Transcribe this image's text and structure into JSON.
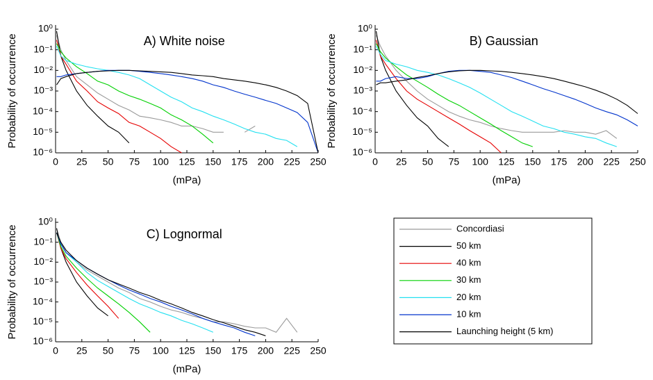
{
  "chart_data": [
    {
      "type": "line",
      "title": "A) White noise",
      "ylabel": "Probability of occurrence",
      "xlabel": "(mPa)",
      "log_y": true,
      "x": [
        1,
        5,
        10,
        20,
        30,
        40,
        50,
        60,
        70,
        80,
        90,
        100,
        110,
        120,
        130,
        140,
        150,
        160,
        170,
        180,
        190,
        200,
        210,
        220,
        230,
        240,
        250
      ],
      "xlim": [
        0,
        250
      ],
      "xticks": [
        0,
        25,
        50,
        75,
        100,
        125,
        150,
        175,
        200,
        225,
        250
      ],
      "ylim": [
        1e-06,
        1
      ],
      "yticks": [
        {
          "value": 1e-06,
          "label": "10⁻⁶"
        },
        {
          "value": 1e-05,
          "label": "10⁻⁵"
        },
        {
          "value": 0.0001,
          "label": "10⁻⁴"
        },
        {
          "value": 0.001,
          "label": "10⁻³"
        },
        {
          "value": 0.01,
          "label": "10⁻²"
        },
        {
          "value": 0.1,
          "label": "10⁻¹"
        },
        {
          "value": 1,
          "label": "10⁰"
        }
      ],
      "series": [
        {
          "name": "Concordiasi",
          "color": "#9a9a9a",
          "values": [
            0.5,
            0.1,
            0.03,
            0.005,
            0.002,
            0.0008,
            0.0004,
            0.0002,
            0.00012,
            6e-05,
            5e-05,
            4e-05,
            3e-05,
            2e-05,
            2e-05,
            1.5e-05,
            1e-05,
            1e-05,
            null,
            1e-05,
            2e-05,
            null,
            null,
            null,
            null,
            null,
            null
          ]
        },
        {
          "name": "50 km",
          "color": "#000000",
          "values": [
            0.8,
            0.05,
            0.01,
            0.001,
            0.0002,
            6e-05,
            2e-05,
            1e-05,
            3e-06,
            null,
            null,
            null,
            null,
            null,
            null,
            null,
            null,
            null,
            null,
            null,
            null,
            null,
            null,
            null,
            null,
            null,
            null
          ]
        },
        {
          "name": "40 km",
          "color": "#e60000",
          "values": [
            0.3,
            0.05,
            0.02,
            0.003,
            0.001,
            0.0003,
            0.00015,
            8e-05,
            3e-05,
            2e-05,
            1e-05,
            5e-06,
            2e-06,
            1e-06,
            null,
            null,
            null,
            null,
            null,
            null,
            null,
            null,
            null,
            null,
            null,
            null,
            null
          ]
        },
        {
          "name": "30 km",
          "color": "#00d000",
          "values": [
            0.2,
            0.08,
            0.04,
            0.015,
            0.007,
            0.003,
            0.002,
            0.001,
            0.0006,
            0.0004,
            0.00025,
            0.00015,
            7e-05,
            4e-05,
            2e-05,
            8e-06,
            3e-06,
            null,
            null,
            null,
            null,
            null,
            null,
            null,
            null,
            null,
            null
          ]
        },
        {
          "name": "20 km",
          "color": "#22e0f0",
          "values": [
            0.15,
            0.05,
            0.03,
            0.02,
            0.015,
            0.012,
            0.01,
            0.008,
            0.006,
            0.004,
            0.002,
            0.001,
            0.0005,
            0.0003,
            0.00015,
            0.0001,
            6e-05,
            4e-05,
            2.5e-05,
            1.5e-05,
            1e-05,
            8e-06,
            5e-06,
            4e-06,
            2e-06,
            null,
            null
          ]
        },
        {
          "name": "10 km",
          "color": "#0033cc",
          "values": [
            0.005,
            0.005,
            0.006,
            0.007,
            0.008,
            0.009,
            0.01,
            0.01,
            0.01,
            0.009,
            0.008,
            0.007,
            0.006,
            0.005,
            0.004,
            0.003,
            0.002,
            0.0015,
            0.001,
            0.0007,
            0.0005,
            0.00035,
            0.00025,
            0.00015,
            9e-05,
            3e-05,
            1e-06
          ]
        },
        {
          "name": "Launching height (5 km)",
          "color": "#000000",
          "values": [
            0.002,
            0.004,
            0.005,
            0.007,
            0.008,
            0.009,
            0.0095,
            0.01,
            0.01,
            0.0095,
            0.009,
            0.0085,
            0.008,
            0.007,
            0.006,
            0.0055,
            0.005,
            0.004,
            0.0035,
            0.003,
            0.0025,
            0.002,
            0.0015,
            0.001,
            0.0006,
            0.00025,
            1e-06
          ]
        }
      ]
    },
    {
      "type": "line",
      "title": "B) Gaussian",
      "ylabel": "Probability of occurrence",
      "xlabel": "(mPa)",
      "log_y": true,
      "x": [
        1,
        5,
        10,
        20,
        30,
        40,
        50,
        60,
        70,
        80,
        90,
        100,
        110,
        120,
        130,
        140,
        150,
        160,
        170,
        180,
        190,
        200,
        210,
        220,
        230,
        240,
        250
      ],
      "xlim": [
        0,
        250
      ],
      "xticks": [
        0,
        25,
        50,
        75,
        100,
        125,
        150,
        175,
        200,
        225,
        250
      ],
      "ylim": [
        1e-06,
        1
      ],
      "yticks": [
        {
          "value": 1e-06,
          "label": "10⁻⁶"
        },
        {
          "value": 1e-05,
          "label": "10⁻⁵"
        },
        {
          "value": 0.0001,
          "label": "10⁻⁴"
        },
        {
          "value": 0.001,
          "label": "10⁻³"
        },
        {
          "value": 0.01,
          "label": "10⁻²"
        },
        {
          "value": 0.1,
          "label": "10⁻¹"
        },
        {
          "value": 1,
          "label": "10⁰"
        }
      ],
      "series": [
        {
          "name": "Concordiasi",
          "color": "#9a9a9a",
          "values": [
            0.5,
            0.15,
            0.05,
            0.01,
            0.003,
            0.001,
            0.0004,
            0.0002,
            0.0001,
            6e-05,
            4e-05,
            3e-05,
            2e-05,
            1.5e-05,
            1.2e-05,
            1e-05,
            1e-05,
            1e-05,
            1e-05,
            1.2e-05,
            1e-05,
            1e-05,
            8e-06,
            1.2e-05,
            5e-06,
            null,
            null
          ]
        },
        {
          "name": "50 km",
          "color": "#000000",
          "values": [
            0.8,
            0.05,
            0.01,
            0.001,
            0.0002,
            5e-05,
            2e-05,
            5e-06,
            2e-06,
            null,
            null,
            null,
            null,
            null,
            null,
            null,
            null,
            null,
            null,
            null,
            null,
            null,
            null,
            null,
            null,
            null,
            null
          ]
        },
        {
          "name": "40 km",
          "color": "#e60000",
          "values": [
            0.3,
            0.05,
            0.02,
            0.004,
            0.001,
            0.0004,
            0.0002,
            0.0001,
            5e-05,
            2.5e-05,
            1.2e-05,
            6e-06,
            3e-06,
            1e-06,
            null,
            null,
            null,
            null,
            null,
            null,
            null,
            null,
            null,
            null,
            null,
            null,
            null
          ]
        },
        {
          "name": "30 km",
          "color": "#00d000",
          "values": [
            0.2,
            0.08,
            0.04,
            0.015,
            0.006,
            0.003,
            0.0015,
            0.0007,
            0.00035,
            0.0002,
            0.0001,
            5e-05,
            2.5e-05,
            1.2e-05,
            6e-06,
            3e-06,
            2e-06,
            null,
            null,
            null,
            null,
            null,
            null,
            null,
            null,
            null,
            null
          ]
        },
        {
          "name": "20 km",
          "color": "#22e0f0",
          "values": [
            0.15,
            0.06,
            0.03,
            0.02,
            0.015,
            0.01,
            0.008,
            0.006,
            0.004,
            0.0025,
            0.0015,
            0.0008,
            0.0004,
            0.0002,
            0.0001,
            6e-05,
            3.5e-05,
            2e-05,
            1.5e-05,
            1e-05,
            8e-06,
            6e-06,
            5e-06,
            3e-06,
            2e-06,
            null,
            null
          ]
        },
        {
          "name": "10 km",
          "color": "#0033cc",
          "values": [
            0.003,
            0.003,
            0.004,
            0.005,
            0.004,
            0.004,
            0.005,
            0.007,
            0.009,
            0.01,
            0.01,
            0.009,
            0.008,
            0.006,
            0.0045,
            0.003,
            0.002,
            0.0013,
            0.0009,
            0.0006,
            0.0004,
            0.00025,
            0.00015,
            0.0001,
            7e-05,
            4e-05,
            2e-05
          ]
        },
        {
          "name": "Launching height (5 km)",
          "color": "#000000",
          "values": [
            0.002,
            0.0025,
            0.0025,
            0.003,
            0.0035,
            0.0045,
            0.0055,
            0.007,
            0.0085,
            0.0095,
            0.01,
            0.01,
            0.0095,
            0.009,
            0.008,
            0.007,
            0.006,
            0.005,
            0.004,
            0.003,
            0.0022,
            0.0016,
            0.0011,
            0.0007,
            0.0004,
            0.0002,
            8e-05
          ]
        }
      ]
    },
    {
      "type": "line",
      "title": "C) Lognormal",
      "ylabel": "Probability of occurrence",
      "xlabel": "(mPa)",
      "log_y": true,
      "x": [
        1,
        5,
        10,
        20,
        30,
        40,
        50,
        60,
        70,
        80,
        90,
        100,
        110,
        120,
        130,
        140,
        150,
        160,
        170,
        180,
        190,
        200,
        210,
        220,
        230,
        240,
        250
      ],
      "xlim": [
        0,
        250
      ],
      "xticks": [
        0,
        25,
        50,
        75,
        100,
        125,
        150,
        175,
        200,
        225,
        250
      ],
      "ylim": [
        1e-06,
        1
      ],
      "yticks": [
        {
          "value": 1e-06,
          "label": "10⁻⁶"
        },
        {
          "value": 1e-05,
          "label": "10⁻⁵"
        },
        {
          "value": 0.0001,
          "label": "10⁻⁴"
        },
        {
          "value": 0.001,
          "label": "10⁻³"
        },
        {
          "value": 0.01,
          "label": "10⁻²"
        },
        {
          "value": 0.1,
          "label": "10⁻¹"
        },
        {
          "value": 1,
          "label": "10⁰"
        }
      ],
      "series": [
        {
          "name": "Concordiasi",
          "color": "#9a9a9a",
          "values": [
            0.5,
            0.1,
            0.03,
            0.01,
            0.004,
            0.002,
            0.001,
            0.0005,
            0.0003,
            0.00015,
            0.0001,
            6e-05,
            4e-05,
            3e-05,
            2e-05,
            1.5e-05,
            1e-05,
            1e-05,
            8e-06,
            6e-06,
            5e-06,
            5e-06,
            3e-06,
            1.5e-05,
            3e-06,
            null,
            null
          ]
        },
        {
          "name": "50 km",
          "color": "#000000",
          "values": [
            0.5,
            0.05,
            0.01,
            0.001,
            0.0002,
            5e-05,
            2e-05,
            null,
            null,
            null,
            null,
            null,
            null,
            null,
            null,
            null,
            null,
            null,
            null,
            null,
            null,
            null,
            null,
            null,
            null,
            null,
            null
          ]
        },
        {
          "name": "40 km",
          "color": "#e60000",
          "values": [
            0.3,
            0.05,
            0.015,
            0.003,
            0.0007,
            0.0002,
            6e-05,
            1.5e-05,
            null,
            null,
            null,
            null,
            null,
            null,
            null,
            null,
            null,
            null,
            null,
            null,
            null,
            null,
            null,
            null,
            null,
            null,
            null
          ]
        },
        {
          "name": "30 km",
          "color": "#00d000",
          "values": [
            0.3,
            0.06,
            0.02,
            0.005,
            0.0015,
            0.0005,
            0.0002,
            8e-05,
            3e-05,
            1e-05,
            3e-06,
            null,
            null,
            null,
            null,
            null,
            null,
            null,
            null,
            null,
            null,
            null,
            null,
            null,
            null,
            null,
            null
          ]
        },
        {
          "name": "20 km",
          "color": "#22e0f0",
          "values": [
            0.3,
            0.08,
            0.03,
            0.01,
            0.003,
            0.0012,
            0.0006,
            0.0003,
            0.00015,
            8e-05,
            5e-05,
            3e-05,
            2e-05,
            1.2e-05,
            8e-06,
            5e-06,
            3e-06,
            null,
            null,
            null,
            null,
            null,
            null,
            null,
            null,
            null,
            null
          ]
        },
        {
          "name": "10 km",
          "color": "#0033cc",
          "values": [
            0.3,
            0.08,
            0.03,
            0.012,
            0.005,
            0.0025,
            0.0013,
            0.0007,
            0.0004,
            0.00025,
            0.00015,
            0.0001,
            6e-05,
            4e-05,
            2.5e-05,
            1.5e-05,
            1e-05,
            7e-06,
            5e-06,
            3e-06,
            2e-06,
            null,
            null,
            null,
            null,
            null,
            null
          ]
        },
        {
          "name": "Launching height (5 km)",
          "color": "#000000",
          "values": [
            0.3,
            0.1,
            0.04,
            0.012,
            0.005,
            0.0025,
            0.0013,
            0.0008,
            0.0005,
            0.0003,
            0.0002,
            0.00012,
            8e-05,
            5e-05,
            3e-05,
            2e-05,
            1.3e-05,
            9e-06,
            6e-06,
            4e-06,
            3e-06,
            2e-06,
            null,
            null,
            null,
            null,
            null
          ]
        }
      ]
    }
  ]
}
